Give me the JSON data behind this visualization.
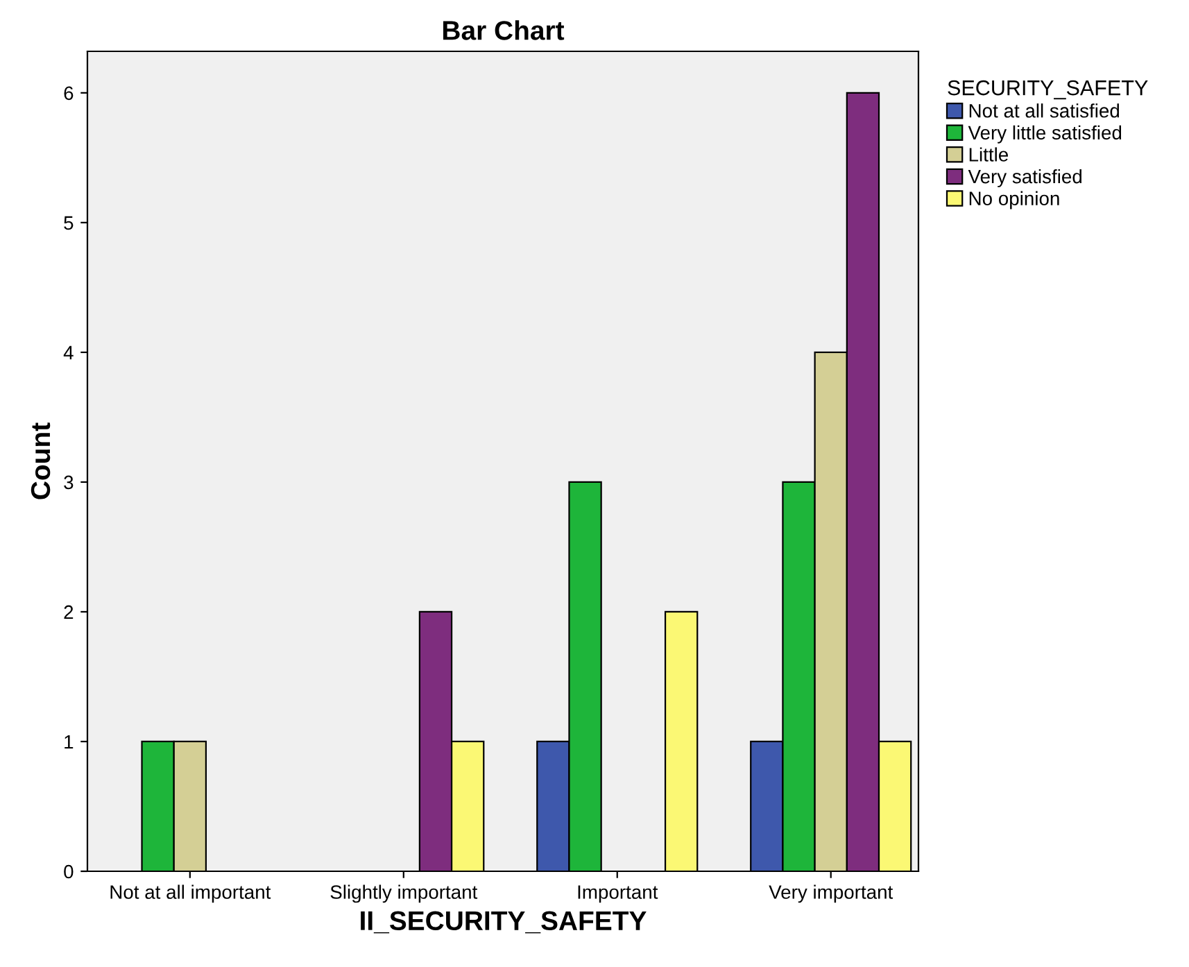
{
  "chart_data": {
    "type": "bar",
    "title": "Bar Chart",
    "xlabel": "II_SECURITY_SAFETY",
    "ylabel": "Count",
    "legend_title": "SECURITY_SAFETY",
    "categories": [
      "Not at all important",
      "Slightly important",
      "Important",
      "Very important"
    ],
    "series": [
      {
        "name": "Not at all satisfied",
        "color": "#3e58ac",
        "values": [
          null,
          null,
          1,
          1
        ]
      },
      {
        "name": "Very little satisfied",
        "color": "#1eb53a",
        "values": [
          1,
          null,
          3,
          3
        ]
      },
      {
        "name": "Little",
        "color": "#d4cf95",
        "values": [
          1,
          null,
          null,
          4
        ]
      },
      {
        "name": "Very satisfied",
        "color": "#7e2d7e",
        "values": [
          null,
          2,
          null,
          6
        ]
      },
      {
        "name": "No opinion",
        "color": "#fbf874",
        "values": [
          null,
          1,
          2,
          1
        ]
      }
    ],
    "ylim": [
      0,
      6.32
    ],
    "yticks": [
      0,
      1,
      2,
      3,
      4,
      5,
      6
    ],
    "grid": false,
    "legend": "right"
  }
}
